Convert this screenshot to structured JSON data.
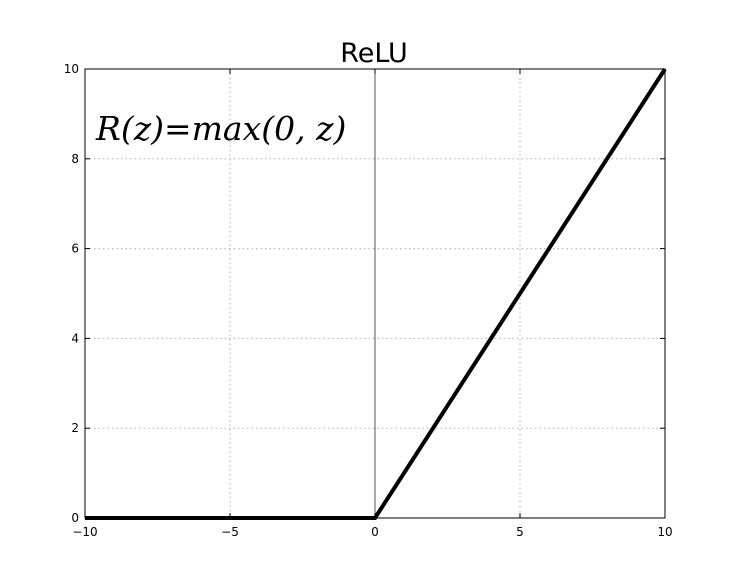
{
  "chart_data": {
    "type": "line",
    "title": "ReLU",
    "xlabel": "",
    "ylabel": "",
    "xlim": [
      -10,
      10
    ],
    "ylim": [
      0,
      10
    ],
    "grid": true,
    "grid_style": "dotted",
    "x_ticks": [
      -10,
      -5,
      0,
      5,
      10
    ],
    "x_tick_labels": [
      "−10",
      "−5",
      "0",
      "5",
      "10"
    ],
    "y_ticks": [
      0,
      2,
      4,
      6,
      8,
      10
    ],
    "y_tick_labels": [
      "0",
      "2",
      "4",
      "6",
      "8",
      "10"
    ],
    "annotation": "R(z)=max(0,  z)",
    "series": [
      {
        "color": "#000000",
        "x": [
          -10,
          0,
          10
        ],
        "y": [
          0,
          0,
          10
        ]
      }
    ],
    "vertical_reference_line": {
      "x": 0,
      "color": "#555555"
    }
  }
}
